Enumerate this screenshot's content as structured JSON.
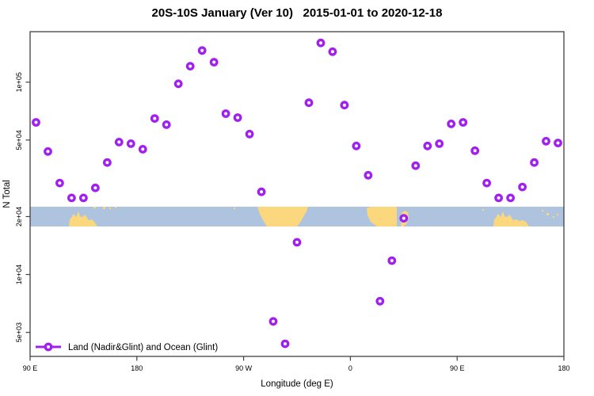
{
  "figure": {
    "title": "20S-10S January (Ver 10)   2015-01-01 to 2020-12-18"
  },
  "colors": {
    "marker": "#A020F0",
    "axis": "#404040",
    "ocean": "#AEC3DD",
    "land": "#FBD77E",
    "text": "#000000",
    "background": "#FFFFFF"
  },
  "chart_data": {
    "type": "scatter",
    "title": "20S-10S January (Ver 10)   2015-01-01 to 2020-12-18",
    "xlabel": "Longitude (deg E)",
    "ylabel": "N Total",
    "x_axis": {
      "lim": [
        90,
        540
      ],
      "note": "longitude wraps: 90E to 180, 90W, 0, 90E, 180",
      "ticks": [
        {
          "value": 90,
          "label": "90 E"
        },
        {
          "value": 180,
          "label": "180"
        },
        {
          "value": 270,
          "label": "90 W"
        },
        {
          "value": 360,
          "label": "0"
        },
        {
          "value": 450,
          "label": "90 E"
        },
        {
          "value": 540,
          "label": "180"
        }
      ]
    },
    "y_axis": {
      "scale": "log",
      "lim": [
        3750,
        183000
      ],
      "ticks": [
        {
          "value": 5000,
          "label": "5e+03"
        },
        {
          "value": 10000,
          "label": "1e+04"
        },
        {
          "value": 20000,
          "label": "2e+04"
        },
        {
          "value": 50000,
          "label": "5e+04"
        },
        {
          "value": 100000,
          "label": "1e+05"
        }
      ]
    },
    "legend": {
      "label": "Land (Nadir&Glint) and Ocean (Glint)",
      "position": "bottom-left"
    },
    "series": [
      {
        "name": "Land (Nadir&Glint) and Ocean (Glint)",
        "marker": "open-circle",
        "color": "#A020F0",
        "points": [
          [
            95,
            61800
          ],
          [
            105,
            43600
          ],
          [
            115,
            29900
          ],
          [
            125,
            25000
          ],
          [
            135,
            25000
          ],
          [
            145,
            28200
          ],
          [
            155,
            38200
          ],
          [
            165,
            48800
          ],
          [
            175,
            47900
          ],
          [
            185,
            44800
          ],
          [
            195,
            64700
          ],
          [
            205,
            60100
          ],
          [
            215,
            98100
          ],
          [
            225,
            121000
          ],
          [
            235,
            146000
          ],
          [
            245,
            127000
          ],
          [
            255,
            68600
          ],
          [
            265,
            65400
          ],
          [
            275,
            53700
          ],
          [
            285,
            26900
          ],
          [
            295,
            5700
          ],
          [
            305,
            4360
          ],
          [
            315,
            14700
          ],
          [
            325,
            78200
          ],
          [
            335,
            160000
          ],
          [
            345,
            144000
          ],
          [
            355,
            76000
          ],
          [
            365,
            46600
          ],
          [
            375,
            32800
          ],
          [
            385,
            7260
          ],
          [
            395,
            11800
          ],
          [
            405,
            19600
          ],
          [
            415,
            36800
          ],
          [
            425,
            46600
          ],
          [
            435,
            47900
          ],
          [
            445,
            60700
          ],
          [
            455,
            61800
          ],
          [
            465,
            44000
          ],
          [
            475,
            29900
          ],
          [
            485,
            25000
          ],
          [
            495,
            25000
          ],
          [
            505,
            28500
          ],
          [
            515,
            38200
          ],
          [
            525,
            49300
          ],
          [
            535,
            48300
          ]
        ]
      }
    ],
    "map_band": {
      "description": "world-map strip of the 20S-10S latitude band drawn across the plot at N Total = 20000",
      "center_value": 20000,
      "ocean_color": "#AEC3DD",
      "land_color": "#FBD77E",
      "lands": [
        "Australia",
        "South America",
        "Africa",
        "Madagascar",
        "Australia (wrap repeat)",
        "Pacific islands"
      ]
    }
  }
}
